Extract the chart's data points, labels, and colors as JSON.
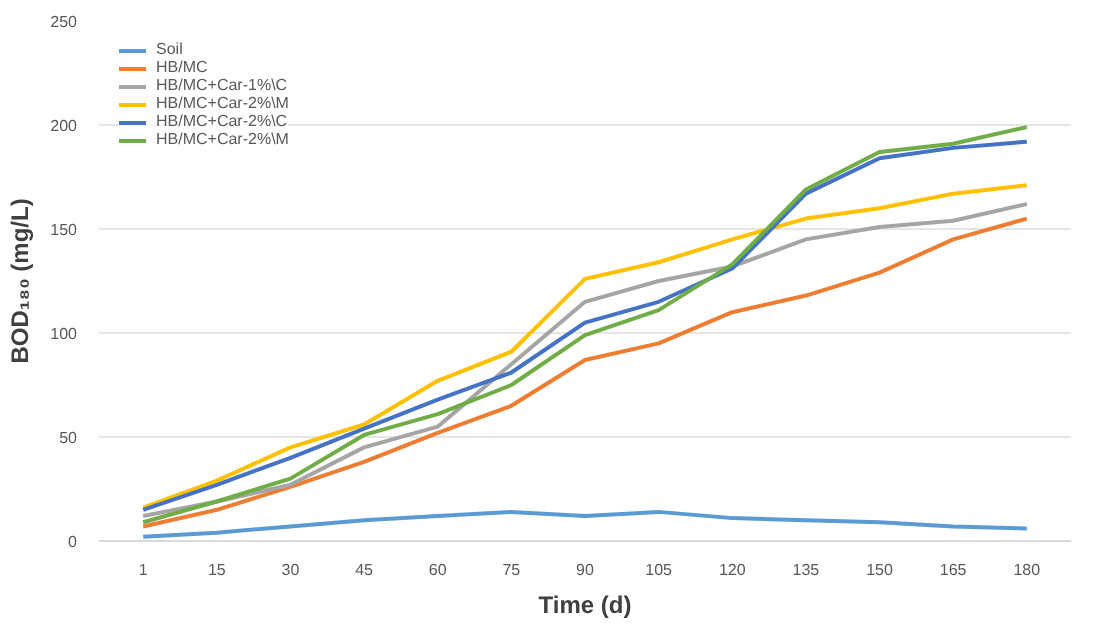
{
  "chart_data": {
    "type": "line",
    "xlabel": "Time (d)",
    "ylabel": "BOD₁₈₀ (mg/L)",
    "categories": [
      "1",
      "15",
      "30",
      "45",
      "60",
      "75",
      "90",
      "105",
      "120",
      "135",
      "150",
      "165",
      "180"
    ],
    "ylim": [
      0,
      250
    ],
    "yticks": [
      0,
      50,
      100,
      150,
      200,
      250
    ],
    "grid": "y",
    "legend": "top left",
    "marker": "none",
    "line_style": "solid",
    "series": [
      {
        "name": "Soil",
        "color": "#5b9bd5",
        "values": [
          2,
          4,
          7,
          10,
          12,
          14,
          12,
          14,
          11,
          10,
          9,
          7,
          6
        ]
      },
      {
        "name": "HB/MC",
        "color": "#ed7d31",
        "values": [
          7,
          15,
          26,
          38,
          52,
          65,
          87,
          95,
          110,
          118,
          129,
          145,
          155
        ]
      },
      {
        "name": "HB/MC+Car-1%\\C",
        "color": "#a5a5a5",
        "values": [
          12,
          19,
          27,
          45,
          55,
          85,
          115,
          125,
          132,
          145,
          151,
          154,
          162
        ]
      },
      {
        "name": "HB/MC+Car-2%\\M",
        "color": "#ffc000",
        "values": [
          16,
          29,
          45,
          56,
          77,
          91,
          126,
          134,
          145,
          155,
          160,
          167,
          171
        ]
      },
      {
        "name": "HB/MC+Car-2%\\C",
        "color": "#4472c4",
        "values": [
          15,
          27,
          40,
          54,
          68,
          81,
          105,
          115,
          131,
          167,
          184,
          189,
          192
        ]
      },
      {
        "name": "HB/MC+Car-2%\\M",
        "color": "#70ad47",
        "values": [
          9,
          19,
          30,
          51,
          61,
          75,
          99,
          111,
          133,
          169,
          187,
          191,
          199
        ]
      }
    ]
  }
}
